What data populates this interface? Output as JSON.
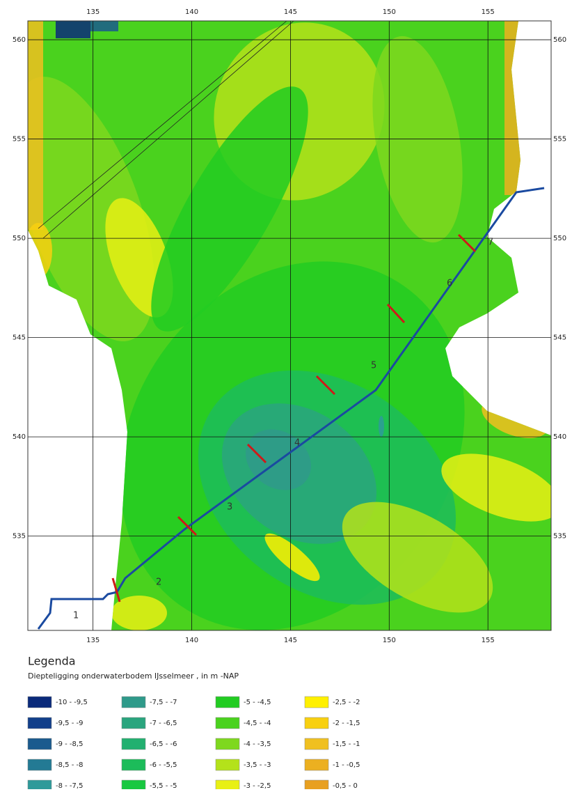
{
  "map": {
    "xlim": [
      131.7,
      158.2
    ],
    "ylim": [
      530.25,
      560.95
    ],
    "xticks": [
      135,
      140,
      145,
      150,
      155
    ],
    "yticks": [
      535,
      540,
      545,
      550,
      555,
      560
    ]
  },
  "sections": [
    "1",
    "2",
    "3",
    "4",
    "5",
    "6",
    "7"
  ],
  "legend": {
    "title": "Legenda",
    "subtitle": "Diepteligging onderwaterbodem IJsselmeer , in m -NAP",
    "items": [
      {
        "label": "-10 - -9,5",
        "color": "#0a2a7a"
      },
      {
        "label": "-9,5 - -9",
        "color": "#123f8a"
      },
      {
        "label": "-9 - -8,5",
        "color": "#1a5a8e"
      },
      {
        "label": "-8,5 - -8",
        "color": "#237a94"
      },
      {
        "label": "-8 - -7,5",
        "color": "#2e9a9a"
      },
      {
        "label": "-7,5 - -7",
        "color": "#2f9a8a"
      },
      {
        "label": "-7 - -6,5",
        "color": "#2aa57e"
      },
      {
        "label": "-6,5 - -6",
        "color": "#22b070"
      },
      {
        "label": "-6 - -5,5",
        "color": "#1cbc5a"
      },
      {
        "label": "-5,5 - -5",
        "color": "#18c840"
      },
      {
        "label": "-5 - -4,5",
        "color": "#22cc22"
      },
      {
        "label": "-4,5 - -4",
        "color": "#4ad21e"
      },
      {
        "label": "-4 - -3,5",
        "color": "#7ed81e"
      },
      {
        "label": "-3,5 - -3",
        "color": "#b4e21a"
      },
      {
        "label": "-3 - -2,5",
        "color": "#e8f014"
      },
      {
        "label": "-2,5 - -2",
        "color": "#fff000"
      },
      {
        "label": "-2 - -1,5",
        "color": "#f8d010"
      },
      {
        "label": "-1,5 - -1",
        "color": "#f0c020"
      },
      {
        "label": "-1 - -0,5",
        "color": "#ecb020"
      },
      {
        "label": "-0,5 - 0",
        "color": "#e8a020"
      }
    ]
  }
}
